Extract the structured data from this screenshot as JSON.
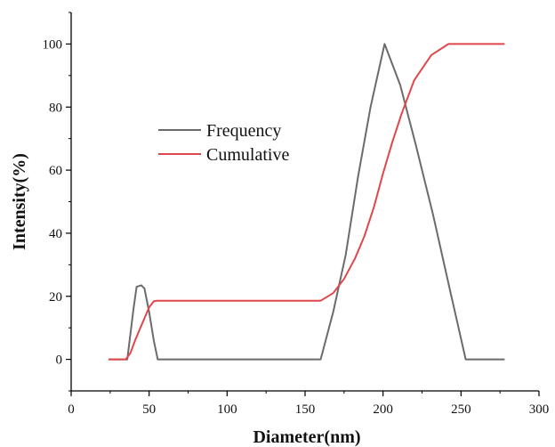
{
  "chart_data": {
    "type": "line",
    "xlabel": "Diameter(nm)",
    "ylabel": "Intensity(%)",
    "xlim": [
      0,
      300
    ],
    "ylim": [
      -10,
      110
    ],
    "xticks": [
      0,
      50,
      100,
      150,
      200,
      250,
      300
    ],
    "yticks": [
      0,
      20,
      40,
      60,
      80,
      100
    ],
    "grid": false,
    "legend_position": "upper-left",
    "series": [
      {
        "name": "Frequency",
        "color": "#6b6b6b",
        "points": [
          [
            24,
            0
          ],
          [
            36,
            0
          ],
          [
            38,
            8
          ],
          [
            40,
            16
          ],
          [
            42,
            23
          ],
          [
            45,
            23.5
          ],
          [
            47,
            22.5
          ],
          [
            50,
            15
          ],
          [
            53,
            6
          ],
          [
            55.5,
            0
          ],
          [
            160,
            0
          ],
          [
            168,
            15
          ],
          [
            176,
            33
          ],
          [
            184,
            58
          ],
          [
            192,
            80
          ],
          [
            201,
            100
          ],
          [
            211,
            87
          ],
          [
            221,
            68
          ],
          [
            232,
            46
          ],
          [
            242,
            24
          ],
          [
            253,
            0
          ],
          [
            278,
            0
          ]
        ]
      },
      {
        "name": "Cumulative",
        "color": "#e0474c",
        "points": [
          [
            24,
            0
          ],
          [
            35,
            0
          ],
          [
            38,
            2
          ],
          [
            41,
            6
          ],
          [
            44,
            9.5
          ],
          [
            47,
            13
          ],
          [
            50,
            16.5
          ],
          [
            53,
            18.4
          ],
          [
            55,
            18.6
          ],
          [
            160,
            18.6
          ],
          [
            168,
            21
          ],
          [
            175,
            25.5
          ],
          [
            182,
            32
          ],
          [
            188,
            39
          ],
          [
            194,
            48
          ],
          [
            200,
            59
          ],
          [
            206,
            69
          ],
          [
            212,
            78
          ],
          [
            220,
            88.5
          ],
          [
            231,
            96.5
          ],
          [
            242,
            100
          ],
          [
            278,
            100
          ]
        ]
      }
    ]
  }
}
